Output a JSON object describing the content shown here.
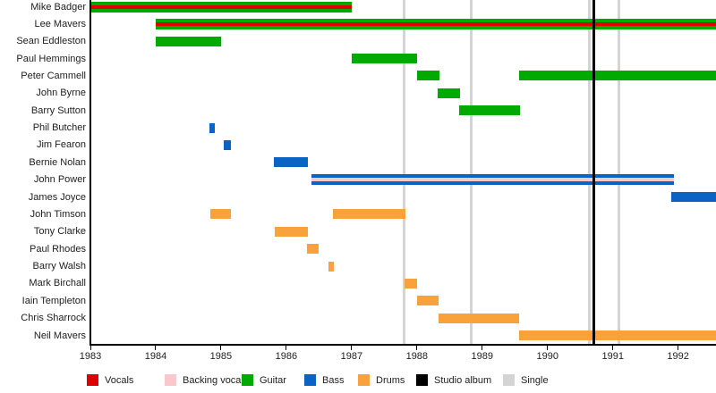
{
  "chart_data": {
    "type": "bar",
    "variant": "band-membership-gantt-timeline",
    "title": "",
    "x_axis": {
      "min": 1983,
      "max": 1992.58,
      "ticks": [
        "1983",
        "1984",
        "1985",
        "1986",
        "1987",
        "1988",
        "1989",
        "1990",
        "1991",
        "1992"
      ],
      "tick_years": [
        1983,
        1984,
        1985,
        1986,
        1987,
        1988,
        1989,
        1990,
        1991,
        1992
      ]
    },
    "role_colors": {
      "vocals": "#e00000",
      "backing_vocals": "#f8c8cd",
      "guitar": "#00aa00",
      "bass": "#0b63c4",
      "drums": "#f9a13b"
    },
    "event_colors": {
      "studio_album": "#000000",
      "single": "#d4d4d4"
    },
    "members": [
      {
        "name": "Mike Badger",
        "bars": [
          {
            "start": 1983.0,
            "end": 1987.0,
            "role": "guitar",
            "stripe": "vocals"
          }
        ]
      },
      {
        "name": "Lee Mavers",
        "bars": [
          {
            "start": 1984.0,
            "end": 1992.58,
            "role": "guitar",
            "stripe": "vocals"
          }
        ]
      },
      {
        "name": "Sean Eddleston",
        "bars": [
          {
            "start": 1984.0,
            "end": 1985.0,
            "role": "guitar"
          }
        ]
      },
      {
        "name": "Paul Hemmings",
        "bars": [
          {
            "start": 1987.0,
            "end": 1988.0,
            "role": "guitar"
          }
        ]
      },
      {
        "name": "Peter Cammell",
        "bars": [
          {
            "start": 1988.0,
            "end": 1988.34,
            "role": "guitar"
          },
          {
            "start": 1989.56,
            "end": 1992.58,
            "role": "guitar"
          }
        ]
      },
      {
        "name": "John Byrne",
        "bars": [
          {
            "start": 1988.32,
            "end": 1988.66,
            "role": "guitar"
          }
        ]
      },
      {
        "name": "Barry Sutton",
        "bars": [
          {
            "start": 1988.65,
            "end": 1989.58,
            "role": "guitar"
          }
        ]
      },
      {
        "name": "Phil Butcher",
        "bars": [
          {
            "start": 1984.82,
            "end": 1984.9,
            "role": "bass"
          }
        ]
      },
      {
        "name": "Jim Fearon",
        "bars": [
          {
            "start": 1985.04,
            "end": 1985.15,
            "role": "bass"
          }
        ]
      },
      {
        "name": "Bernie Nolan",
        "bars": [
          {
            "start": 1985.81,
            "end": 1986.33,
            "role": "bass"
          }
        ]
      },
      {
        "name": "John Power",
        "bars": [
          {
            "start": 1986.39,
            "end": 1991.93,
            "role": "bass",
            "stripe": "backing_vocals"
          }
        ]
      },
      {
        "name": "James Joyce",
        "bars": [
          {
            "start": 1991.9,
            "end": 1992.58,
            "role": "bass"
          }
        ]
      },
      {
        "name": "John Timson",
        "bars": [
          {
            "start": 1984.83,
            "end": 1985.15,
            "role": "drums"
          },
          {
            "start": 1986.72,
            "end": 1987.83,
            "role": "drums"
          }
        ]
      },
      {
        "name": "Tony Clarke",
        "bars": [
          {
            "start": 1985.82,
            "end": 1986.33,
            "role": "drums"
          }
        ]
      },
      {
        "name": "Paul Rhodes",
        "bars": [
          {
            "start": 1986.31,
            "end": 1986.49,
            "role": "drums"
          }
        ]
      },
      {
        "name": "Barry Walsh",
        "bars": [
          {
            "start": 1986.64,
            "end": 1986.73,
            "role": "drums"
          }
        ]
      },
      {
        "name": "Mark Birchall",
        "bars": [
          {
            "start": 1987.81,
            "end": 1988.0,
            "role": "drums"
          }
        ]
      },
      {
        "name": "Iain Templeton",
        "bars": [
          {
            "start": 1988.0,
            "end": 1988.33,
            "role": "drums"
          }
        ]
      },
      {
        "name": "Chris Sharrock",
        "bars": [
          {
            "start": 1988.33,
            "end": 1989.57,
            "role": "drums"
          }
        ]
      },
      {
        "name": "Neil Mavers",
        "bars": [
          {
            "start": 1989.57,
            "end": 1992.58,
            "role": "drums"
          }
        ]
      }
    ],
    "events": {
      "studio_albums": [
        1990.71
      ],
      "singles": [
        1987.81,
        1988.83,
        1990.64,
        1991.09
      ]
    },
    "legend": [
      {
        "label": "Vocals",
        "color_key": "vocals"
      },
      {
        "label": "Backing vocals",
        "color_key": "backing_vocals"
      },
      {
        "label": "Guitar",
        "color_key": "guitar"
      },
      {
        "label": "Bass",
        "color_key": "bass"
      },
      {
        "label": "Drums",
        "color_key": "drums"
      },
      {
        "label": "Studio album",
        "color_key": "studio_album"
      },
      {
        "label": "Single",
        "color_key": "single"
      }
    ]
  }
}
